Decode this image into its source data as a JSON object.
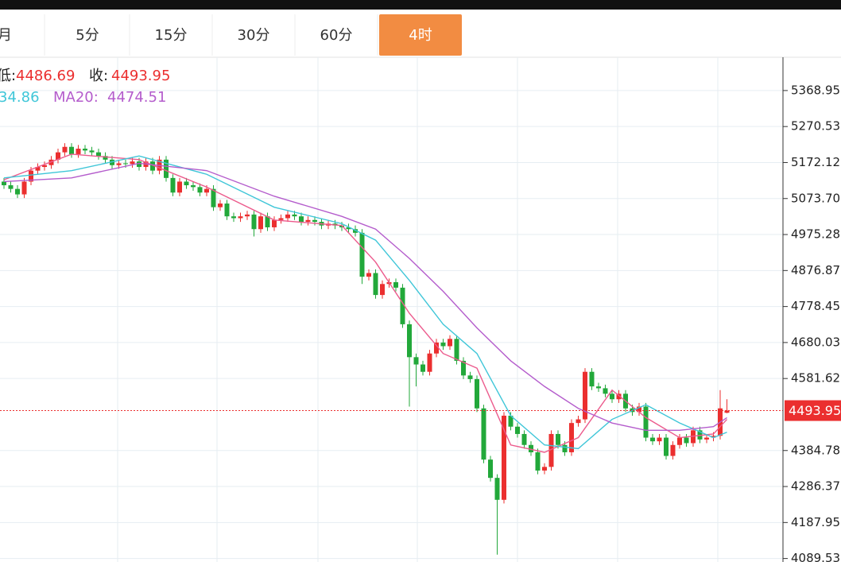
{
  "tabs": [
    "月",
    "5分",
    "15分",
    "30分",
    "60分",
    "4时"
  ],
  "chart_data": {
    "type": "candlestick",
    "legend_labels": [
      "低:",
      "收:",
      "MA20:"
    ],
    "legend_ma10_partial": "34.86",
    "ylim": [
      4080,
      5460
    ],
    "yticks": [
      5368.95,
      5270.53,
      5172.12,
      {
        "value": 5073.7,
        "label": "5073.70"
      },
      4975.28,
      4876.87,
      4778.45,
      4680.03,
      4581.62,
      4384.78,
      4286.37,
      4187.95,
      4089.53
    ],
    "grid": true,
    "up_color": "#eb2f2f",
    "down_color": "#22a83a",
    "candles": {
      "open": [
        5120,
        5110,
        5100,
        5085,
        5120,
        5150,
        5160,
        5165,
        5180,
        5200,
        5215,
        5195,
        5210,
        5205,
        5200,
        5190,
        5180,
        5165,
        5170,
        5168,
        5175,
        5160,
        5175,
        5150,
        5180,
        5130,
        5090,
        5120,
        5110,
        5105,
        5090,
        5100,
        5050,
        5060,
        5025,
        5020,
        5025,
        5030,
        4990,
        5025,
        4995,
        5015,
        5020,
        5030,
        5025,
        5010,
        5015,
        5010,
        5000,
        5005,
        5000,
        4995,
        4990,
        4980,
        4860,
        4870,
        4810,
        4840,
        4845,
        4830,
        4730,
        4640,
        4620,
        4600,
        4650,
        4680,
        4670,
        4690,
        4630,
        4590,
        4580,
        4500,
        4360,
        4310,
        4250,
        4480,
        4450,
        4430,
        4400,
        4380,
        4330,
        4340,
        4430,
        4400,
        4380,
        4460,
        4470,
        4600,
        4560,
        4555,
        4540,
        4525,
        4540,
        4500,
        4490,
        4505,
        4420,
        4410,
        4420,
        4370,
        4400,
        4420,
        4405,
        4440,
        4415,
        4420,
        4425,
        4488
      ],
      "high": [
        5130,
        5120,
        5110,
        5130,
        5160,
        5170,
        5175,
        5190,
        5210,
        5225,
        5225,
        5220,
        5220,
        5215,
        5210,
        5200,
        5190,
        5180,
        5180,
        5185,
        5185,
        5185,
        5185,
        5190,
        5190,
        5140,
        5130,
        5130,
        5120,
        5115,
        5110,
        5110,
        5070,
        5070,
        5035,
        5035,
        5040,
        5040,
        5035,
        5035,
        5025,
        5030,
        5040,
        5040,
        5035,
        5025,
        5025,
        5020,
        5015,
        5015,
        5010,
        5005,
        5000,
        4990,
        4880,
        4880,
        4850,
        4855,
        4855,
        4840,
        4740,
        4650,
        4630,
        4660,
        4690,
        4690,
        4700,
        4700,
        4640,
        4600,
        4590,
        4510,
        4370,
        4320,
        4490,
        4490,
        4460,
        4440,
        4410,
        4390,
        4350,
        4440,
        4440,
        4410,
        4470,
        4480,
        4610,
        4610,
        4570,
        4565,
        4550,
        4550,
        4550,
        4510,
        4515,
        4515,
        4430,
        4430,
        4430,
        4410,
        4430,
        4430,
        4450,
        4450,
        4430,
        4435,
        4550,
        4525
      ],
      "low": [
        5100,
        5090,
        5075,
        5075,
        5110,
        5140,
        5150,
        5155,
        5170,
        5190,
        5185,
        5185,
        5195,
        5190,
        5180,
        5170,
        5155,
        5155,
        5158,
        5158,
        5150,
        5150,
        5140,
        5140,
        5120,
        5080,
        5080,
        5100,
        5095,
        5080,
        5080,
        5040,
        5040,
        5015,
        5010,
        5010,
        5015,
        4970,
        4980,
        4985,
        4985,
        5005,
        5010,
        5015,
        5000,
        5000,
        5000,
        4990,
        4990,
        4990,
        4985,
        4980,
        4970,
        4840,
        4850,
        4800,
        4800,
        4830,
        4820,
        4720,
        4505,
        4560,
        4590,
        4590,
        4640,
        4660,
        4660,
        4620,
        4580,
        4570,
        4490,
        4350,
        4300,
        4100,
        4240,
        4440,
        4420,
        4390,
        4370,
        4320,
        4320,
        4330,
        4390,
        4370,
        4370,
        4450,
        4460,
        4550,
        4545,
        4530,
        4515,
        4515,
        4490,
        4480,
        4480,
        4410,
        4400,
        4400,
        4360,
        4360,
        4390,
        4395,
        4395,
        4405,
        4405,
        4410,
        4415,
        4486.69
      ],
      "close": [
        5110,
        5100,
        5085,
        5120,
        5150,
        5160,
        5165,
        5180,
        5200,
        5215,
        5195,
        5210,
        5205,
        5200,
        5190,
        5180,
        5165,
        5170,
        5168,
        5175,
        5160,
        5175,
        5150,
        5180,
        5130,
        5090,
        5120,
        5110,
        5105,
        5090,
        5100,
        5050,
        5060,
        5025,
        5020,
        5025,
        5030,
        4990,
        5025,
        4995,
        5015,
        5020,
        5030,
        5025,
        5010,
        5015,
        5010,
        5000,
        5005,
        5000,
        4995,
        4990,
        4980,
        4860,
        4870,
        4810,
        4840,
        4845,
        4830,
        4730,
        4640,
        4620,
        4600,
        4650,
        4680,
        4670,
        4690,
        4630,
        4590,
        4580,
        4500,
        4360,
        4310,
        4250,
        4480,
        4450,
        4430,
        4400,
        4380,
        4330,
        4340,
        4430,
        4400,
        4380,
        4460,
        4470,
        4600,
        4560,
        4555,
        4540,
        4525,
        4540,
        4500,
        4490,
        4505,
        4420,
        4410,
        4420,
        4370,
        4400,
        4420,
        4405,
        4440,
        4415,
        4420,
        4425,
        4500,
        4493.95
      ]
    },
    "series": [
      {
        "color": "#ec5a8c",
        "x": [
          0,
          10,
          20,
          30,
          40,
          50,
          55,
          60,
          65,
          70,
          75,
          80,
          85,
          90,
          95,
          100,
          105,
          107
        ],
        "values": [
          5125,
          5195,
          5180,
          5105,
          5015,
          5000,
          4900,
          4760,
          4650,
          4610,
          4400,
          4380,
          4420,
          4550,
          4475,
          4420,
          4430,
          4470
        ]
      },
      {
        "color": "#3fc6d8",
        "x": [
          0,
          10,
          20,
          30,
          40,
          50,
          55,
          60,
          65,
          70,
          75,
          80,
          85,
          90,
          95,
          100,
          105,
          107
        ],
        "values": [
          5130,
          5150,
          5190,
          5140,
          5050,
          5005,
          4960,
          4850,
          4730,
          4650,
          4480,
          4400,
          4390,
          4470,
          4510,
          4460,
          4420,
          4434.86
        ]
      },
      {
        "name": "MA20",
        "color": "#b45ccc",
        "x": [
          0,
          10,
          20,
          30,
          40,
          50,
          55,
          60,
          65,
          70,
          75,
          80,
          85,
          90,
          95,
          100,
          105,
          107
        ],
        "values": [
          5120,
          5130,
          5170,
          5150,
          5080,
          5025,
          4990,
          4910,
          4820,
          4720,
          4630,
          4560,
          4500,
          4460,
          4440,
          4440,
          4450,
          4474.51
        ]
      }
    ]
  }
}
